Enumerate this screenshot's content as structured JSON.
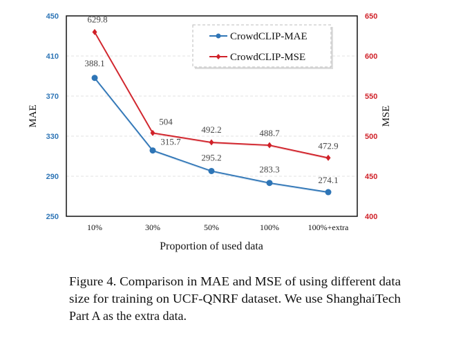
{
  "chart_data": {
    "type": "line",
    "categories": [
      "10%",
      "30%",
      "50%",
      "100%",
      "100%+extra"
    ],
    "xlabel": "Proportion of used data",
    "series": [
      {
        "name": "CrowdCLIP-MAE",
        "axis": "left",
        "color": "#2e75b6",
        "marker": "circle",
        "values": [
          388.1,
          315.7,
          295.2,
          283.3,
          274.1
        ],
        "labels": [
          "388.1",
          "315.7",
          "295.2",
          "283.3",
          "274.1"
        ]
      },
      {
        "name": "CrowdCLIP-MSE",
        "axis": "right",
        "color": "#d02028",
        "marker": "diamond",
        "values": [
          629.8,
          504,
          492.2,
          488.7,
          472.9
        ],
        "labels": [
          "629.8",
          "504",
          "492.2",
          "488.7",
          "472.9"
        ]
      }
    ],
    "left_axis": {
      "label": "MAE",
      "ylim": [
        250,
        450
      ],
      "ticks": [
        "250",
        "290",
        "330",
        "370",
        "410",
        "450"
      ],
      "color": "#2e75b6"
    },
    "right_axis": {
      "label": "MSE",
      "ylim": [
        400,
        650
      ],
      "ticks": [
        "400",
        "450",
        "500",
        "550",
        "600",
        "650"
      ],
      "color": "#d02028"
    },
    "grid": "horizontal dashed",
    "legend_placement": "top-right"
  },
  "caption": {
    "lines": [
      "Figure 4.  Comparison in MAE and MSE of using different data",
      "size for training on UCF-QNRF dataset.  We use ShanghaiTech",
      "Part A as the extra data."
    ]
  }
}
